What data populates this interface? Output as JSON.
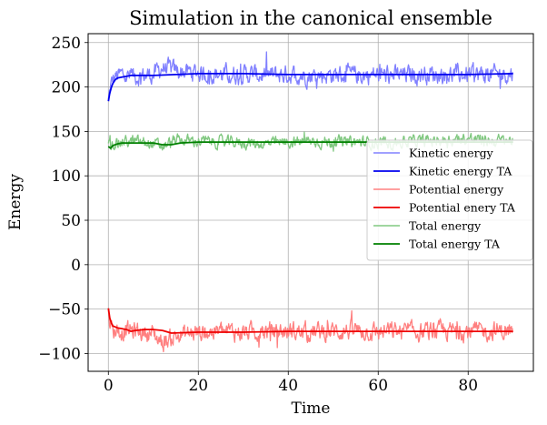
{
  "chart_data": {
    "type": "line",
    "title": "Simulation in the canonical ensemble",
    "xlabel": "Time",
    "ylabel": "Energy",
    "xlim": [
      -4.5,
      94.5
    ],
    "ylim": [
      -120,
      260
    ],
    "xticks": [
      0,
      20,
      40,
      60,
      80
    ],
    "yticks": [
      -100,
      -50,
      0,
      50,
      100,
      150,
      200,
      250
    ],
    "grid": true,
    "legend_position": "center-right",
    "series": [
      {
        "name": "Kinetic energy",
        "color": "#8080ff",
        "style": "noisy",
        "x": [
          0,
          0.5,
          1,
          2,
          3,
          5,
          8,
          10,
          12,
          15,
          20,
          25,
          30,
          35,
          40,
          45,
          50,
          55,
          60,
          65,
          70,
          75,
          80,
          85,
          90
        ],
        "values": [
          184,
          200,
          208,
          212,
          214,
          212,
          213,
          214,
          222,
          218,
          216,
          214,
          215,
          213,
          214,
          213,
          214,
          213,
          214,
          213,
          215,
          214,
          214,
          214,
          215
        ],
        "noise_amplitude": 14
      },
      {
        "name": "Kinetic energy TA",
        "color": "#0000ee",
        "style": "smooth",
        "x": [
          0,
          0.3,
          0.7,
          1,
          1.5,
          2,
          3,
          4,
          5,
          6,
          8,
          10,
          15,
          20,
          30,
          40,
          50,
          60,
          70,
          80,
          90
        ],
        "values": [
          184,
          193,
          200,
          204,
          208,
          210,
          211,
          212,
          213,
          213,
          213,
          213,
          214,
          215,
          215,
          214,
          214,
          214,
          214,
          214,
          215
        ]
      },
      {
        "name": "Potential energy",
        "color": "#ff8080",
        "style": "noisy",
        "x": [
          0,
          0.5,
          1,
          2,
          3,
          5,
          8,
          10,
          12,
          15,
          20,
          25,
          30,
          35,
          40,
          45,
          50,
          55,
          60,
          65,
          70,
          75,
          80,
          85,
          90
        ],
        "values": [
          -50,
          -68,
          -73,
          -74,
          -75,
          -74,
          -76,
          -78,
          -88,
          -80,
          -76,
          -75,
          -76,
          -75,
          -75,
          -76,
          -75,
          -74,
          -76,
          -75,
          -76,
          -75,
          -75,
          -75,
          -75
        ],
        "noise_amplitude": 14
      },
      {
        "name": "Potential enery TA",
        "color": "#ee0000",
        "style": "smooth",
        "x": [
          0,
          0.3,
          0.7,
          1,
          1.5,
          2,
          3,
          4,
          5,
          6,
          8,
          10,
          12,
          14,
          20,
          30,
          40,
          50,
          60,
          70,
          80,
          90
        ],
        "values": [
          -49,
          -60,
          -66,
          -69,
          -70,
          -71,
          -72,
          -73,
          -75,
          -74,
          -73,
          -73,
          -74,
          -77,
          -76,
          -76,
          -75,
          -75,
          -75,
          -75,
          -75,
          -75
        ]
      },
      {
        "name": "Total energy",
        "color": "#80c880",
        "style": "noisy",
        "x": [
          0,
          0.5,
          1,
          2,
          3,
          5,
          8,
          10,
          12,
          15,
          20,
          25,
          30,
          35,
          40,
          45,
          50,
          55,
          60,
          65,
          70,
          75,
          80,
          85,
          90
        ],
        "values": [
          133,
          134,
          136,
          138,
          138,
          139,
          137,
          136,
          133,
          140,
          139,
          138,
          137,
          136,
          138,
          139,
          138,
          138,
          137,
          138,
          139,
          140,
          142,
          139,
          140
        ],
        "noise_amplitude": 9
      },
      {
        "name": "Total energy TA",
        "color": "#008000",
        "style": "smooth",
        "x": [
          0,
          0.5,
          1,
          2,
          3,
          5,
          8,
          10,
          12,
          14,
          16,
          20,
          30,
          40,
          50,
          60,
          70,
          80,
          90
        ],
        "values": [
          133,
          131,
          134,
          136,
          137,
          137,
          137,
          137,
          135,
          135,
          137,
          138,
          138,
          138,
          138,
          138,
          138,
          138,
          138
        ]
      }
    ]
  }
}
